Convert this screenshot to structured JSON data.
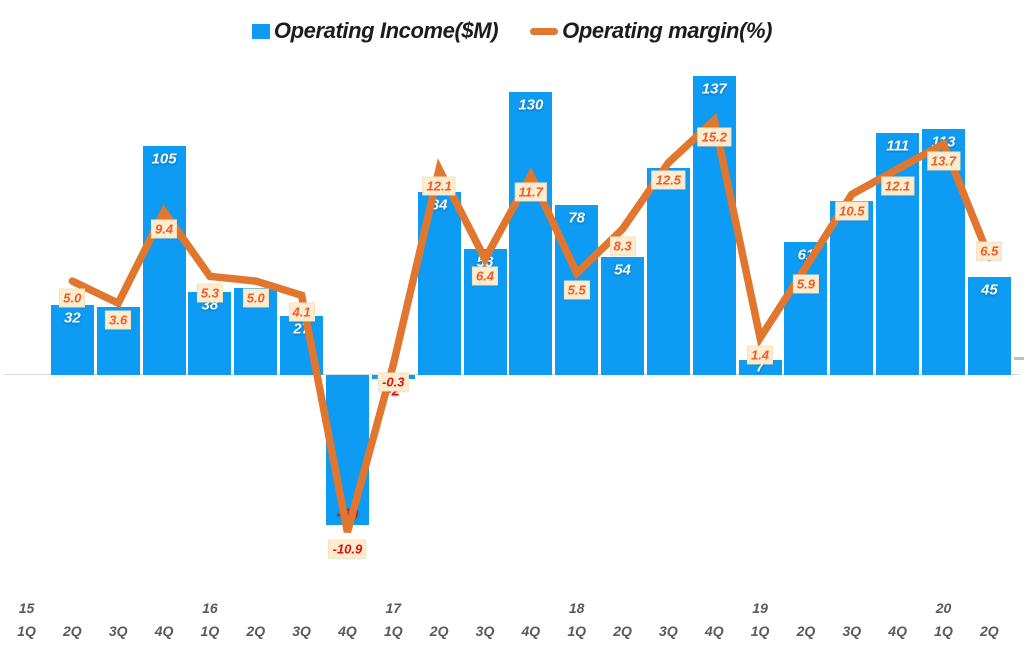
{
  "legend": {
    "income_label": "Operating Income($M)",
    "margin_label": "Operating margin(%)"
  },
  "colors": {
    "bar": "#0d9bf3",
    "line": "#e1772f",
    "margin_label_bg": "#fcecd0",
    "margin_label_border": "#f8e2bd",
    "margin_label_text": "#f05a28",
    "negative_label_text": "#e11010",
    "income_label_text": "#ffffff",
    "axis_text": "#595959",
    "axis_line": "#d9d9d9",
    "tick": "#bfbfbf",
    "legend_text": "#1c1c1c"
  },
  "chart_data": {
    "type": "bar+line combo",
    "title": "",
    "legend_position": "top-center",
    "gridlines": false,
    "left_axis_visible": false,
    "right_axis_visible": false,
    "categories": [
      "15 1Q",
      "15 2Q",
      "15 3Q",
      "15 4Q",
      "16 1Q",
      "16 2Q",
      "16 3Q",
      "16 4Q",
      "17 1Q",
      "17 2Q",
      "17 3Q",
      "17 4Q",
      "18 1Q",
      "18 2Q",
      "18 3Q",
      "18 4Q",
      "19 1Q",
      "19 2Q",
      "19 3Q",
      "19 4Q",
      "20 1Q",
      "20 2Q"
    ],
    "series": [
      {
        "name": "Operating Income($M)",
        "type": "bar",
        "axis": "left",
        "values": [
          null,
          32,
          31,
          105,
          38,
          40,
          27,
          -69,
          -2,
          84,
          58,
          130,
          78,
          54,
          95,
          137,
          7,
          61,
          80,
          111,
          113,
          45
        ],
        "labels": [
          null,
          "32",
          null,
          "105",
          "38",
          null,
          "27",
          "-69",
          "-2",
          "84",
          "58",
          "130",
          "78",
          "54",
          null,
          "137",
          "7",
          "61",
          null,
          "111",
          "113",
          "45"
        ]
      },
      {
        "name": "Operating margin(%)",
        "type": "line",
        "axis": "right",
        "values": [
          null,
          5.0,
          3.6,
          9.4,
          5.3,
          5.0,
          4.1,
          -10.9,
          -0.3,
          12.1,
          6.4,
          11.7,
          5.5,
          8.3,
          12.5,
          15.2,
          1.4,
          5.9,
          10.5,
          12.1,
          13.7,
          6.5
        ],
        "labels": [
          null,
          "5.0",
          "3.6",
          "9.4",
          "5.3",
          "5.0",
          "4.1",
          "-10.9",
          "-0.3",
          "12.1",
          "6.4",
          "11.7",
          "5.5",
          "8.3",
          "12.5",
          "15.2",
          "1.4",
          "5.9",
          "10.5",
          "12.1",
          "13.7",
          "6.5"
        ]
      }
    ],
    "x_axis": {
      "quarter_row": [
        "1Q",
        "2Q",
        "3Q",
        "4Q",
        "1Q",
        "2Q",
        "3Q",
        "4Q",
        "1Q",
        "2Q",
        "3Q",
        "4Q",
        "1Q",
        "2Q",
        "3Q",
        "4Q",
        "1Q",
        "2Q",
        "3Q",
        "4Q",
        "1Q",
        "2Q"
      ],
      "years": [
        {
          "label": "15",
          "index": 0
        },
        {
          "label": "16",
          "index": 4
        },
        {
          "label": "17",
          "index": 8
        },
        {
          "label": "18",
          "index": 12
        },
        {
          "label": "19",
          "index": 16
        },
        {
          "label": "20",
          "index": 20
        }
      ]
    },
    "note": "Bar value labels at 15 3Q, 16 2Q, 18 3Q and 19 3Q are hidden behind the margin callout boxes; those bar values are estimated from bar heights."
  }
}
